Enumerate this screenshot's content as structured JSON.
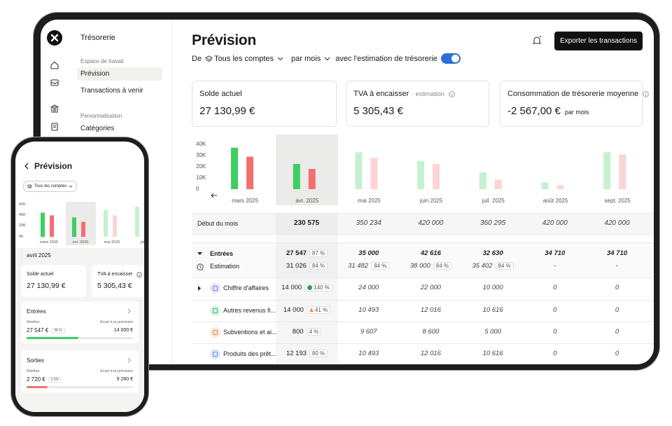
{
  "tablet": {
    "sidebar": {
      "title": "Trésorerie",
      "sections": [
        {
          "label": "Espace de travail",
          "items": [
            "Prévision",
            "Transactions à venir"
          ]
        },
        {
          "label": "Personnalisation",
          "items": [
            "Catégories"
          ]
        }
      ]
    },
    "header": {
      "title": "Prévision",
      "export_button": "Exporter les transactions"
    },
    "filters": {
      "prefix": "De",
      "accounts": "Tous les comptes",
      "period": "par mois",
      "estimation_toggle": "avec l'estimation de trésorerie"
    },
    "cards": [
      {
        "label": "Solde actuel",
        "value": "27 130,99 €"
      },
      {
        "label": "TVA à encaisser",
        "note": "· estimation",
        "value": "5 305,43 €"
      },
      {
        "label": "Consommation de trésorerie moyenne",
        "value": "-2 567,00 €",
        "suffix": "par mois"
      }
    ],
    "chart": {
      "type": "bar",
      "ylim": [
        0,
        40000
      ],
      "yticks": [
        {
          "value": 40000,
          "label": "40K"
        },
        {
          "value": 30000,
          "label": "30K"
        },
        {
          "value": 20000,
          "label": "20K"
        },
        {
          "value": 10000,
          "label": "10K"
        },
        0
      ],
      "categories": [
        "mars 2025",
        "avr. 2025",
        "mai 2025",
        "juin 2025",
        "juil. 2025",
        "août 2025",
        "sept. 2025"
      ],
      "inflows": {
        "color": "#3ecf63",
        "values": [
          37000,
          22500,
          33000,
          25000,
          15000,
          6000,
          33000
        ]
      },
      "outflows": {
        "color": "#f46f6f",
        "values": [
          29000,
          18000,
          28000,
          22500,
          8500,
          3500,
          31000
        ]
      }
    },
    "table": {
      "opening": {
        "label": "Début du mois",
        "values": [
          "230 575",
          "350 234",
          "420 000",
          "360 295",
          "420 000",
          "420 000"
        ]
      },
      "rows": [
        {
          "label": "Entrées",
          "actual": {
            "value": "27 547",
            "pct": "87 %"
          },
          "forecast": [
            {
              "value": "35 000"
            },
            {
              "value": "42 616"
            },
            {
              "value": "32 630"
            },
            {
              "value": "34 710"
            },
            {
              "value": "34 710"
            }
          ]
        },
        {
          "label": "Estimation",
          "actual": {
            "value": "31 026",
            "pct": "84 %"
          },
          "forecast": [
            {
              "value": "31 482",
              "pct": "84 %"
            },
            {
              "value": "38 000",
              "pct": "84 %"
            },
            {
              "value": "35 402",
              "pct": "84 %"
            },
            {
              "value": "-"
            },
            {
              "value": "-"
            }
          ]
        },
        {
          "label": "Chiffre d'affaires",
          "icon_color": "#9b6fd8",
          "status": "ok",
          "actual": {
            "value": "14 000",
            "pct": "140 %"
          },
          "forecast": [
            {
              "value": "24 000"
            },
            {
              "value": "22 000"
            },
            {
              "value": "10 000"
            },
            {
              "value": "0"
            },
            {
              "value": "0"
            }
          ]
        },
        {
          "label": "Autres revenus fi...",
          "icon_color": "#3ebd6a",
          "status": "warning",
          "actual": {
            "value": "14 000",
            "pct": "41 %"
          },
          "forecast": [
            {
              "value": "10 493"
            },
            {
              "value": "12 016"
            },
            {
              "value": "10 616"
            },
            {
              "value": "0"
            },
            {
              "value": "0"
            }
          ]
        },
        {
          "label": "Subventions et ai...",
          "icon_color": "#f0894a",
          "actual": {
            "value": "800",
            "pct": "4 %"
          },
          "forecast": [
            {
              "value": "9 607"
            },
            {
              "value": "8 600"
            },
            {
              "value": "5 000"
            },
            {
              "value": "0"
            },
            {
              "value": "0"
            }
          ]
        },
        {
          "label": "Produits des prêt...",
          "icon_color": "#5b8fd9",
          "actual": {
            "value": "12 193",
            "pct": "80 %"
          },
          "forecast": [
            {
              "value": "10 493"
            },
            {
              "value": "12 016"
            },
            {
              "value": "10 616"
            },
            {
              "value": "0"
            },
            {
              "value": "0"
            }
          ]
        }
      ]
    }
  },
  "phone": {
    "title": "Prévision",
    "filter": "Tous les comptes",
    "chart": {
      "type": "bar",
      "ylim": [
        0,
        60000
      ],
      "yticks": [
        {
          "value": 60000,
          "label": "60K"
        },
        {
          "value": 40000,
          "label": "40K"
        },
        {
          "value": 20000,
          "label": "20K"
        },
        {
          "value": 0,
          "label": "0K"
        }
      ],
      "categories": [
        "mars 2025",
        "avr. 2025",
        "mai 2025",
        "juin"
      ],
      "inflows": {
        "color": "#3ecf63",
        "values": [
          45000,
          36000,
          50000,
          56000
        ]
      },
      "outflows": {
        "color": "#f46f6f",
        "values": [
          40000,
          28000,
          40000,
          40000
        ]
      }
    },
    "month": "avril 2025",
    "cards": [
      {
        "label": "Solde actuel",
        "value": "27 130,99 €"
      },
      {
        "label": "TVA à encaisser",
        "value": "5 305,43 €"
      }
    ],
    "blocks": [
      {
        "title": "Entrées",
        "actual_label": "Réelles",
        "actual": "27 547 €",
        "pct": "36 %",
        "gap_label": "Écart à la prévision",
        "gap": "14 000 €",
        "color": "#3ecf63"
      },
      {
        "title": "Sorties",
        "actual_label": "Réelles",
        "actual": "2 720 €",
        "pct": "2.5%",
        "gap_label": "Écart à la prévision",
        "gap": "9 280 €",
        "color": "#f46f6f"
      }
    ]
  }
}
